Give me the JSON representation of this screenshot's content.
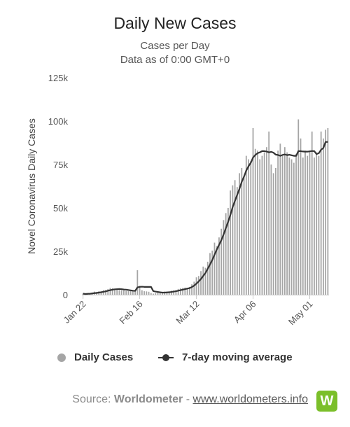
{
  "header": {
    "title": "Daily New Cases",
    "subtitle": "Cases per Day",
    "subtitle2": "Data as of 0:00 GMT+0"
  },
  "legend": {
    "daily": "Daily Cases",
    "avg": "7-day moving average"
  },
  "source": {
    "prefix": "Source: ",
    "name": "Worldometer",
    "separator": " - ",
    "url": "www.worldometers.info",
    "logo": "W"
  },
  "colors": {
    "bar": "#a5a5a5",
    "line": "#333333",
    "axis": "#cccccc",
    "logo": "#7bbf2a"
  },
  "chart_data": {
    "type": "bar",
    "title": "Daily New Cases",
    "subtitle": "Cases per Day",
    "ylabel": "Novel Coronavirus Daily Cases",
    "xlabel": "",
    "ylim": [
      0,
      125000
    ],
    "yticks": [
      0,
      25000,
      50000,
      75000,
      100000,
      125000
    ],
    "ytick_labels": [
      "0",
      "25k",
      "50k",
      "75k",
      "100k",
      "125k"
    ],
    "xtick_labels": [
      "Jan 22",
      "Feb 16",
      "Mar 12",
      "Apr 06",
      "May 01"
    ],
    "xtick_index": [
      0,
      25,
      50,
      75,
      100
    ],
    "start_date": "Jan 22",
    "series": [
      {
        "name": "Daily Cases",
        "type": "bar",
        "values": [
          600,
          100,
          600,
          800,
          1300,
          1800,
          1600,
          2000,
          2100,
          2600,
          2800,
          3200,
          3900,
          3700,
          3200,
          3400,
          2700,
          2600,
          2500,
          2100,
          2000,
          2100,
          2000,
          2500,
          14100,
          5100,
          2600,
          2000,
          1900,
          1700,
          1000,
          600,
          900,
          1100,
          1100,
          1300,
          1800,
          1700,
          1900,
          2300,
          2500,
          2700,
          3300,
          3700,
          3900,
          4100,
          4000,
          4500,
          6000,
          7500,
          10000,
          10800,
          13600,
          16200,
          15500,
          19000,
          24000,
          25400,
          30000,
          28000,
          33000,
          38000,
          43000,
          47000,
          50000,
          60000,
          63000,
          66000,
          62000,
          70000,
          73000,
          68000,
          80000,
          78000,
          77000,
          96000,
          84000,
          83000,
          78000,
          80000,
          82000,
          85000,
          94000,
          75000,
          70000,
          73000,
          83000,
          87000,
          80000,
          85000,
          82000,
          79000,
          78000,
          76000,
          81000,
          101000,
          90000,
          79000,
          83000,
          80000,
          83000,
          94000,
          79000,
          82000,
          80000,
          94000,
          90000,
          95000,
          96000
        ]
      },
      {
        "name": "7-day moving average",
        "type": "line",
        "values": [
          600,
          400,
          500,
          550,
          700,
          900,
          1000,
          1200,
          1400,
          1700,
          1900,
          2300,
          2600,
          2900,
          3100,
          3200,
          3300,
          3200,
          3000,
          2900,
          2700,
          2500,
          2300,
          2200,
          4200,
          4500,
          4600,
          4500,
          4500,
          4500,
          4500,
          2100,
          1800,
          1600,
          1400,
          1200,
          1200,
          1300,
          1400,
          1600,
          1800,
          2000,
          2300,
          2600,
          2900,
          3200,
          3500,
          3800,
          4400,
          5200,
          6400,
          7600,
          9000,
          10800,
          12500,
          14900,
          17400,
          20000,
          23000,
          26000,
          28700,
          31400,
          34700,
          38300,
          42000,
          46000,
          50500,
          54000,
          57500,
          61000,
          65000,
          68000,
          71500,
          74000,
          76000,
          79000,
          80500,
          81500,
          82000,
          82700,
          82700,
          82500,
          82000,
          82300,
          81800,
          80700,
          80500,
          80000,
          80500,
          80800,
          80400,
          80600,
          80300,
          80000,
          80000,
          82700,
          82700,
          82500,
          82400,
          82400,
          82600,
          82800,
          82700,
          81000,
          81500,
          83500,
          84500,
          88000,
          88000
        ]
      }
    ],
    "legend_position": "bottom"
  }
}
